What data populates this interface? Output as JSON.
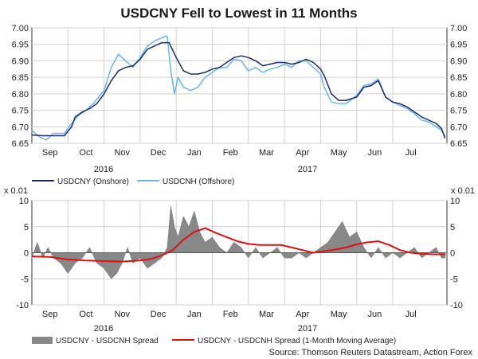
{
  "chart_data": [
    {
      "type": "line",
      "title": "USDCNY Fell to Lowest in 11 Months",
      "ylim": [
        6.65,
        7.0
      ],
      "yticks": [
        "7.00",
        "6.95",
        "6.90",
        "6.85",
        "6.80",
        "6.75",
        "6.70",
        "6.65"
      ],
      "ytick_values": [
        7.0,
        6.95,
        6.9,
        6.85,
        6.8,
        6.75,
        6.7,
        6.65
      ],
      "month_labels": [
        "Sep",
        "Oct",
        "Nov",
        "Dec",
        "Jan",
        "Feb",
        "Mar",
        "Apr",
        "May",
        "Jun",
        "Jul"
      ],
      "year_labels": [
        "2016",
        "2017"
      ],
      "xlim_months": [
        0,
        11.5
      ],
      "series": [
        {
          "name": "USDCNY (Onshore)",
          "color": "#1c2a6e",
          "x": [
            0,
            0.3,
            0.6,
            0.9,
            1.1,
            1.2,
            1.4,
            1.6,
            1.8,
            2.0,
            2.2,
            2.4,
            2.6,
            2.8,
            3.0,
            3.2,
            3.4,
            3.6,
            3.8,
            4.0,
            4.2,
            4.4,
            4.6,
            4.8,
            5.0,
            5.2,
            5.4,
            5.6,
            5.8,
            6.0,
            6.2,
            6.4,
            6.6,
            6.8,
            7.0,
            7.2,
            7.4,
            7.6,
            7.8,
            8.0,
            8.1,
            8.3,
            8.5,
            8.7,
            9.0,
            9.2,
            9.4,
            9.6,
            9.8,
            10.0,
            10.2,
            10.4,
            10.6,
            10.8,
            11.0,
            11.2,
            11.35,
            11.45
          ],
          "values": [
            6.675,
            6.673,
            6.673,
            6.673,
            6.7,
            6.73,
            6.745,
            6.755,
            6.77,
            6.8,
            6.84,
            6.87,
            6.88,
            6.885,
            6.905,
            6.935,
            6.945,
            6.955,
            6.955,
            6.91,
            6.87,
            6.86,
            6.86,
            6.865,
            6.875,
            6.88,
            6.895,
            6.91,
            6.915,
            6.91,
            6.9,
            6.885,
            6.89,
            6.895,
            6.895,
            6.89,
            6.895,
            6.905,
            6.895,
            6.875,
            6.855,
            6.8,
            6.78,
            6.78,
            6.79,
            6.82,
            6.825,
            6.84,
            6.79,
            6.775,
            6.77,
            6.76,
            6.745,
            6.73,
            6.72,
            6.71,
            6.695,
            6.665
          ]
        },
        {
          "name": "USDCNH (Offshore)",
          "color": "#6cb4ee",
          "x": [
            0,
            0.2,
            0.4,
            0.6,
            0.9,
            1.1,
            1.3,
            1.5,
            1.7,
            2.0,
            2.2,
            2.4,
            2.6,
            2.8,
            3.0,
            3.2,
            3.4,
            3.6,
            3.75,
            3.85,
            3.95,
            4.05,
            4.2,
            4.4,
            4.6,
            4.8,
            5.0,
            5.2,
            5.4,
            5.6,
            5.8,
            6.0,
            6.2,
            6.4,
            6.6,
            6.8,
            7.0,
            7.2,
            7.4,
            7.6,
            7.8,
            8.0,
            8.1,
            8.3,
            8.5,
            8.7,
            9.0,
            9.2,
            9.4,
            9.6,
            9.8,
            10.0,
            10.2,
            10.4,
            10.6,
            10.8,
            11.0,
            11.2,
            11.35,
            11.45
          ],
          "values": [
            6.69,
            6.67,
            6.66,
            6.68,
            6.68,
            6.71,
            6.735,
            6.75,
            6.77,
            6.81,
            6.88,
            6.92,
            6.9,
            6.88,
            6.91,
            6.945,
            6.96,
            6.97,
            6.975,
            6.87,
            6.8,
            6.85,
            6.82,
            6.81,
            6.82,
            6.85,
            6.865,
            6.88,
            6.88,
            6.905,
            6.9,
            6.87,
            6.88,
            6.865,
            6.875,
            6.88,
            6.89,
            6.88,
            6.9,
            6.9,
            6.88,
            6.86,
            6.82,
            6.775,
            6.77,
            6.77,
            6.795,
            6.825,
            6.83,
            6.845,
            6.79,
            6.775,
            6.765,
            6.755,
            6.74,
            6.72,
            6.715,
            6.7,
            6.69,
            6.67
          ]
        }
      ]
    },
    {
      "type": "area",
      "ylabel": "x 0.01",
      "ylim": [
        -10,
        10
      ],
      "yticks": [
        "10",
        "5",
        "0",
        "-5",
        "-10"
      ],
      "ytick_values": [
        10,
        5,
        0,
        -5,
        -10
      ],
      "month_labels": [
        "Sep",
        "Oct",
        "Nov",
        "Dec",
        "Jan",
        "Feb",
        "Mar",
        "Apr",
        "May",
        "Jun",
        "Jul"
      ],
      "year_labels": [
        "2016",
        "2017"
      ],
      "xlim_months": [
        0,
        11.5
      ],
      "series": [
        {
          "name": "USDCNY - USDCNH Spread",
          "color": "#888888",
          "x": [
            0,
            0.15,
            0.3,
            0.45,
            0.6,
            0.8,
            1.0,
            1.2,
            1.4,
            1.6,
            1.8,
            2.0,
            2.1,
            2.2,
            2.35,
            2.5,
            2.65,
            2.8,
            3.0,
            3.2,
            3.4,
            3.6,
            3.75,
            3.85,
            3.95,
            4.05,
            4.2,
            4.35,
            4.5,
            4.65,
            4.8,
            5.0,
            5.2,
            5.4,
            5.6,
            5.8,
            6.0,
            6.2,
            6.4,
            6.6,
            6.8,
            7.0,
            7.2,
            7.4,
            7.6,
            7.8,
            8.0,
            8.2,
            8.4,
            8.6,
            8.8,
            9.0,
            9.2,
            9.4,
            9.6,
            9.8,
            10.0,
            10.2,
            10.4,
            10.6,
            10.8,
            11.0,
            11.2,
            11.35,
            11.45
          ],
          "values": [
            -1,
            2,
            -1,
            1,
            -1,
            -2,
            -4,
            -2,
            -1,
            1,
            -2,
            -3,
            -4,
            -5,
            -4,
            -2,
            1,
            -2,
            -1,
            -3,
            -2,
            -1,
            1,
            9,
            5,
            3,
            7,
            5,
            8,
            4,
            2,
            3,
            1,
            0,
            2,
            1,
            -1,
            1,
            -1,
            0,
            1,
            -1,
            -1,
            0,
            -1,
            0,
            1,
            2,
            4,
            6,
            3,
            4,
            1,
            -1,
            1,
            -1,
            0,
            -1,
            0,
            1,
            -1,
            0,
            1,
            -1,
            -1
          ]
        },
        {
          "name": "USDCNY - USDCNH Spread (1-Month Moving Average)",
          "color": "#e01010",
          "x": [
            0,
            0.5,
            1.0,
            1.5,
            2.0,
            2.5,
            3.0,
            3.3,
            3.6,
            3.9,
            4.2,
            4.5,
            4.8,
            5.1,
            5.4,
            5.7,
            6.0,
            6.3,
            6.6,
            6.9,
            7.2,
            7.5,
            7.8,
            8.1,
            8.4,
            8.7,
            9.0,
            9.3,
            9.6,
            9.9,
            10.2,
            10.5,
            10.8,
            11.1,
            11.45
          ],
          "values": [
            -0.7,
            -0.8,
            -1.3,
            -1.5,
            -1.6,
            -1.7,
            -1.5,
            -1.2,
            -0.5,
            0.5,
            2.5,
            4.0,
            4.7,
            3.8,
            3.0,
            2.2,
            1.7,
            1.5,
            1.5,
            1.5,
            1.0,
            0.5,
            0,
            0.3,
            0.6,
            1.0,
            1.6,
            2.0,
            2.2,
            1.5,
            0.5,
            0,
            -0.2,
            -0.3,
            -0.3
          ]
        }
      ]
    }
  ],
  "source": "Source: Thomson Reuters Datastream, Action Forex"
}
